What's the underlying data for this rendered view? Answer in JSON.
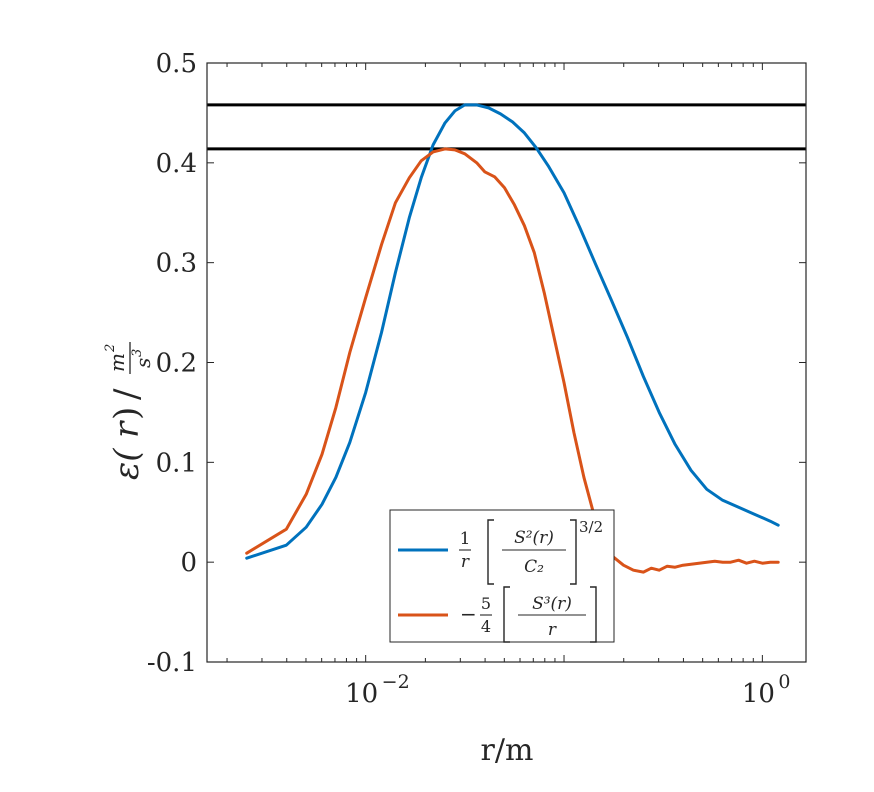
{
  "chart_data": {
    "type": "line",
    "title": "",
    "xlabel": "r/m",
    "ylabel": "ε(r) / m²/s³",
    "x_scale": "log",
    "xlim_log10": [
      -2.8,
      0.22
    ],
    "ylim": [
      -0.1,
      0.5
    ],
    "yticks": [
      -0.1,
      0,
      0.1,
      0.2,
      0.3,
      0.4,
      0.5
    ],
    "ytick_labels": [
      "-0.1",
      "0",
      "0.1",
      "0.2",
      "0.3",
      "0.4",
      "0.5"
    ],
    "xticks_log10": [
      -2,
      0
    ],
    "xtick_labels": [
      {
        "base": "10",
        "exp": "−2"
      },
      {
        "base": "10",
        "exp": "0"
      }
    ],
    "hlines": [
      0.458,
      0.414
    ],
    "hline_color": "#000000",
    "series": [
      {
        "name": "1/r [S²(r)/C₂]^(3/2)",
        "color": "#0072BD",
        "log10x": [
          -2.6,
          -2.4,
          -2.3,
          -2.22,
          -2.15,
          -2.08,
          -2.0,
          -1.92,
          -1.85,
          -1.78,
          -1.72,
          -1.66,
          -1.6,
          -1.55,
          -1.5,
          -1.44,
          -1.38,
          -1.32,
          -1.26,
          -1.2,
          -1.14,
          -1.08,
          -1.0,
          -0.92,
          -0.84,
          -0.76,
          -0.68,
          -0.6,
          -0.52,
          -0.44,
          -0.36,
          -0.28,
          -0.2,
          -0.12,
          -0.04,
          0.04,
          0.08
        ],
        "values": [
          0.004,
          0.017,
          0.035,
          0.058,
          0.085,
          0.12,
          0.17,
          0.23,
          0.29,
          0.345,
          0.385,
          0.418,
          0.44,
          0.452,
          0.458,
          0.458,
          0.455,
          0.449,
          0.441,
          0.43,
          0.415,
          0.397,
          0.37,
          0.335,
          0.298,
          0.262,
          0.225,
          0.186,
          0.15,
          0.118,
          0.092,
          0.073,
          0.062,
          0.055,
          0.048,
          0.041,
          0.037
        ]
      },
      {
        "name": "−5/4 [S³(r)/r]",
        "color": "#D95319",
        "log10x": [
          -2.6,
          -2.4,
          -2.3,
          -2.22,
          -2.15,
          -2.08,
          -2.0,
          -1.92,
          -1.85,
          -1.78,
          -1.72,
          -1.66,
          -1.6,
          -1.55,
          -1.5,
          -1.44,
          -1.4,
          -1.35,
          -1.3,
          -1.25,
          -1.2,
          -1.15,
          -1.1,
          -1.05,
          -1.0,
          -0.95,
          -0.9,
          -0.85,
          -0.8,
          -0.75,
          -0.7,
          -0.65,
          -0.6,
          -0.56,
          -0.52,
          -0.48,
          -0.44,
          -0.4,
          -0.36,
          -0.32,
          -0.28,
          -0.24,
          -0.2,
          -0.16,
          -0.12,
          -0.08,
          -0.04,
          0.0,
          0.04,
          0.08
        ],
        "values": [
          0.009,
          0.033,
          0.068,
          0.108,
          0.155,
          0.21,
          0.265,
          0.318,
          0.36,
          0.385,
          0.402,
          0.411,
          0.414,
          0.413,
          0.409,
          0.4,
          0.391,
          0.386,
          0.375,
          0.358,
          0.337,
          0.31,
          0.27,
          0.225,
          0.18,
          0.13,
          0.085,
          0.048,
          0.022,
          0.005,
          -0.003,
          -0.008,
          -0.01,
          -0.006,
          -0.008,
          -0.004,
          -0.005,
          -0.003,
          -0.002,
          -0.001,
          0.0,
          0.001,
          0.0,
          0.0,
          0.002,
          -0.001,
          0.001,
          -0.001,
          0.0,
          0.0
        ]
      }
    ],
    "legend": {
      "placement": "bottom-center",
      "entries": [
        {
          "lead": "1",
          "lead_den": "r",
          "top": "S²(r)",
          "bottom": "C₂",
          "power": "3/2"
        },
        {
          "lead": "−",
          "lead_num": "5",
          "lead_den": "4",
          "top": "S³(r)",
          "bottom": "r",
          "power": ""
        }
      ]
    }
  }
}
